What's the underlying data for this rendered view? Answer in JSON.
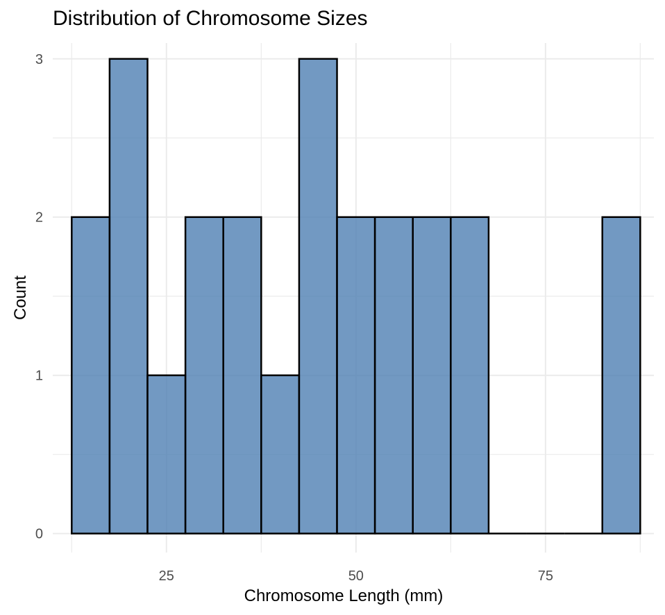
{
  "chart_data": {
    "type": "bar",
    "title": "Distribution of Chromosome Sizes",
    "xlabel": "Chromosome Length (mm)",
    "ylabel": "Count",
    "bin_width": 5,
    "bins": [
      {
        "start": 12.5,
        "end": 17.5,
        "count": 2
      },
      {
        "start": 17.5,
        "end": 22.5,
        "count": 3
      },
      {
        "start": 22.5,
        "end": 27.5,
        "count": 1
      },
      {
        "start": 27.5,
        "end": 32.5,
        "count": 2
      },
      {
        "start": 32.5,
        "end": 37.5,
        "count": 2
      },
      {
        "start": 37.5,
        "end": 42.5,
        "count": 1
      },
      {
        "start": 42.5,
        "end": 47.5,
        "count": 3
      },
      {
        "start": 47.5,
        "end": 52.5,
        "count": 2
      },
      {
        "start": 52.5,
        "end": 57.5,
        "count": 2
      },
      {
        "start": 57.5,
        "end": 62.5,
        "count": 2
      },
      {
        "start": 62.5,
        "end": 67.5,
        "count": 2
      },
      {
        "start": 67.5,
        "end": 72.5,
        "count": 0
      },
      {
        "start": 72.5,
        "end": 77.5,
        "count": 0
      },
      {
        "start": 77.5,
        "end": 82.5,
        "count": 0
      },
      {
        "start": 82.5,
        "end": 87.5,
        "count": 2
      }
    ],
    "xlim": [
      10,
      89.3
    ],
    "ylim": [
      -0.12,
      3.1
    ],
    "x_ticks": [
      25,
      50,
      75
    ],
    "x_tick_labels": [
      "25",
      "50",
      "75"
    ],
    "y_ticks": [
      0,
      1,
      2,
      3
    ],
    "y_tick_labels": [
      "0",
      "1",
      "2",
      "3"
    ],
    "grid": true,
    "colors": {
      "bar_fill": "#4f7fb3",
      "bar_stroke": "#000000",
      "grid": "#ebebeb",
      "tick_text": "#4d4d4d"
    }
  }
}
